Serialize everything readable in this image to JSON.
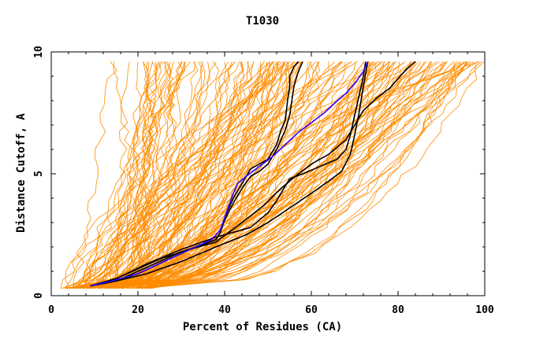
{
  "chart_data": {
    "type": "line",
    "title": "T1030",
    "xlabel": "Percent of Residues (CA)",
    "ylabel": "Distance Cutoff, A",
    "xlim": [
      0,
      100
    ],
    "ylim": [
      0,
      10
    ],
    "xticks": [
      "0",
      "20",
      "40",
      "60",
      "80",
      "100"
    ],
    "yticks": [
      "0",
      "5",
      "10"
    ],
    "grid": false,
    "legend": "none",
    "colors": {
      "background_curves": "#ff8c00",
      "highlight_black": "#000000",
      "highlight_blue": "#3300ff",
      "axis": "#000000"
    },
    "highlight_series": [
      {
        "color": "#000000",
        "x": [
          9,
          15,
          20,
          25,
          30,
          35,
          38,
          39,
          40,
          42,
          44,
          46,
          48,
          50,
          52,
          53,
          54,
          54.5,
          55,
          55,
          56,
          57
        ],
        "y": [
          0.4,
          0.6,
          1.0,
          1.4,
          1.8,
          2.1,
          2.3,
          2.6,
          3.2,
          4.0,
          4.6,
          5.2,
          5.4,
          5.6,
          6.2,
          6.8,
          7.2,
          8.0,
          8.6,
          9.0,
          9.4,
          9.6
        ]
      },
      {
        "color": "#000000",
        "x": [
          9,
          15,
          20,
          26,
          32,
          38,
          39,
          40,
          42,
          44,
          46,
          48,
          50,
          52,
          54,
          55,
          56,
          57,
          58
        ],
        "y": [
          0.4,
          0.6,
          0.9,
          1.4,
          1.9,
          2.3,
          2.6,
          3.1,
          3.8,
          4.4,
          4.9,
          5.1,
          5.4,
          6.0,
          6.8,
          7.4,
          8.6,
          9.2,
          9.6
        ]
      },
      {
        "color": "#000000",
        "x": [
          9,
          15,
          22,
          30,
          38,
          46,
          50,
          52,
          55,
          58,
          62,
          66,
          68,
          69,
          70,
          71,
          72,
          72.5
        ],
        "y": [
          0.4,
          0.7,
          1.3,
          1.9,
          2.4,
          2.8,
          3.4,
          3.9,
          4.8,
          5.0,
          5.3,
          5.6,
          6.0,
          6.6,
          7.4,
          8.2,
          9.0,
          9.6
        ]
      },
      {
        "color": "#000000",
        "x": [
          9,
          15,
          20,
          25,
          30,
          38,
          44,
          49,
          53,
          57,
          60,
          64,
          68,
          70,
          72,
          75,
          78,
          80,
          82,
          84
        ],
        "y": [
          0.4,
          0.7,
          1.1,
          1.5,
          1.8,
          2.2,
          3.0,
          3.7,
          4.4,
          5.0,
          5.4,
          5.8,
          6.4,
          7.0,
          7.6,
          8.1,
          8.5,
          8.9,
          9.3,
          9.6
        ]
      },
      {
        "color": "#000000",
        "x": [
          9,
          15,
          22,
          30,
          38,
          45,
          50,
          55,
          60,
          64,
          67,
          69,
          70,
          71,
          72,
          73
        ],
        "y": [
          0.4,
          0.6,
          0.9,
          1.4,
          2.0,
          2.5,
          3.0,
          3.6,
          4.2,
          4.7,
          5.1,
          5.8,
          6.6,
          7.5,
          8.6,
          9.6
        ]
      },
      {
        "color": "#3300ff",
        "x": [
          9,
          14,
          20,
          26,
          32,
          37,
          39,
          40,
          41,
          42,
          43,
          45,
          48,
          51,
          54,
          57,
          60,
          63,
          66,
          68,
          70,
          72,
          73
        ],
        "y": [
          0.4,
          0.6,
          0.9,
          1.4,
          1.9,
          2.3,
          2.7,
          3.2,
          3.7,
          4.2,
          4.6,
          4.9,
          5.3,
          5.7,
          6.2,
          6.7,
          7.1,
          7.5,
          8.0,
          8.3,
          8.7,
          9.2,
          9.6
        ]
      }
    ]
  }
}
